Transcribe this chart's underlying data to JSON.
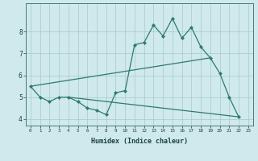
{
  "xlabel": "Humidex (Indice chaleur)",
  "background_color": "#cfe9ec",
  "grid_color": "#a8c8cc",
  "line_color": "#2d7a6e",
  "x_hours": [
    0,
    1,
    2,
    3,
    4,
    5,
    6,
    7,
    8,
    9,
    10,
    11,
    12,
    13,
    14,
    15,
    16,
    17,
    18,
    19,
    20,
    21,
    22,
    23
  ],
  "line1": [
    5.5,
    5.0,
    4.8,
    5.0,
    5.0,
    4.8,
    4.5,
    4.4,
    4.2,
    5.2,
    5.3,
    7.4,
    7.5,
    8.3,
    7.8,
    8.6,
    7.7,
    8.2,
    7.3,
    6.8,
    6.1,
    5.0,
    4.1,
    null
  ],
  "line2_x": [
    0,
    19
  ],
  "line2_y": [
    5.5,
    6.8
  ],
  "line3_x": [
    4,
    22
  ],
  "line3_y": [
    5.0,
    4.1
  ],
  "xlim": [
    -0.5,
    23.5
  ],
  "ylim": [
    3.7,
    9.3
  ],
  "yticks": [
    4,
    5,
    6,
    7,
    8
  ],
  "xticks": [
    0,
    1,
    2,
    3,
    4,
    5,
    6,
    7,
    8,
    9,
    10,
    11,
    12,
    13,
    14,
    15,
    16,
    17,
    18,
    19,
    20,
    21,
    22,
    23
  ],
  "xtick_labels": [
    "0",
    "1",
    "2",
    "3",
    "4",
    "5",
    "6",
    "7",
    "8",
    "9",
    "10",
    "11",
    "12",
    "13",
    "14",
    "15",
    "16",
    "17",
    "18",
    "19",
    "20",
    "21",
    "22",
    "23"
  ]
}
